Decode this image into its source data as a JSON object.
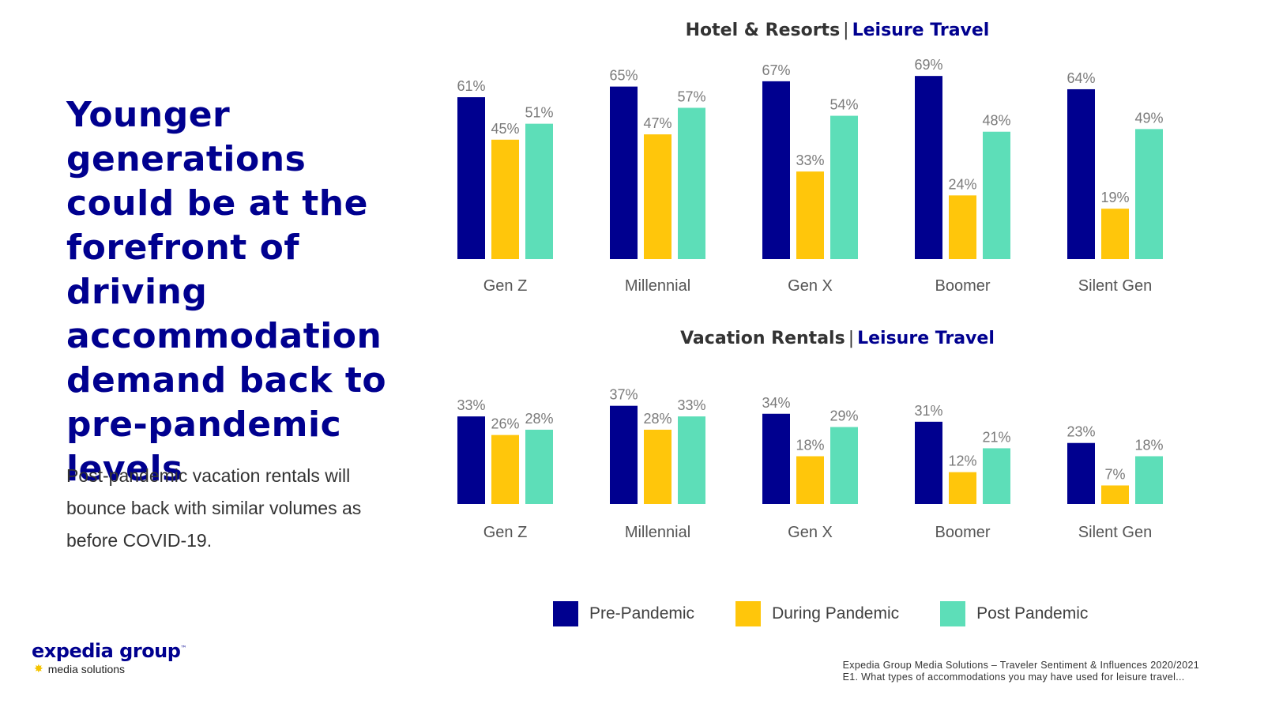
{
  "headline": "Younger generations could be at the forefront of driving accommodation demand back to pre-pandemic levels",
  "subtext": "Post-pandemic vacation rentals will bounce back with similar volumes as before COVID-19.",
  "colors": {
    "pre": "#00008f",
    "during": "#ffc60b",
    "post": "#5ddeb8",
    "accent": "#00008f"
  },
  "legend": [
    {
      "label": "Pre-Pandemic",
      "color": "#00008f"
    },
    {
      "label": "During Pandemic",
      "color": "#ffc60b"
    },
    {
      "label": "Post Pandemic",
      "color": "#5ddeb8"
    }
  ],
  "logo": {
    "main": "expedia group",
    "mark": "™",
    "sub": "media solutions"
  },
  "source": {
    "line1": "Expedia Group Media Solutions – Traveler Sentiment & Influences 2020/2021",
    "line2": "E1. What types of accommodations you may have used for leisure travel..."
  },
  "chart_data": [
    {
      "type": "bar",
      "title": "Hotel & Resorts",
      "title_accent": "Leisure Travel",
      "separator": "|",
      "categories": [
        "Gen Z",
        "Millennial",
        "Gen X",
        "Boomer",
        "Silent Gen"
      ],
      "series": [
        {
          "name": "Pre-Pandemic",
          "values": [
            61,
            65,
            67,
            69,
            64
          ]
        },
        {
          "name": "During Pandemic",
          "values": [
            45,
            47,
            33,
            24,
            19
          ]
        },
        {
          "name": "Post Pandemic",
          "values": [
            51,
            57,
            54,
            48,
            49
          ]
        }
      ],
      "value_suffix": "%",
      "ylim": [
        0,
        70
      ],
      "grid": false
    },
    {
      "type": "bar",
      "title": "Vacation Rentals",
      "title_accent": "Leisure Travel",
      "separator": "|",
      "categories": [
        "Gen Z",
        "Millennial",
        "Gen X",
        "Boomer",
        "Silent Gen"
      ],
      "series": [
        {
          "name": "Pre-Pandemic",
          "values": [
            33,
            37,
            34,
            31,
            23
          ]
        },
        {
          "name": "During Pandemic",
          "values": [
            26,
            28,
            18,
            12,
            7
          ]
        },
        {
          "name": "Post Pandemic",
          "values": [
            28,
            33,
            29,
            21,
            18
          ]
        }
      ],
      "value_suffix": "%",
      "ylim": [
        0,
        70
      ],
      "grid": false
    }
  ]
}
